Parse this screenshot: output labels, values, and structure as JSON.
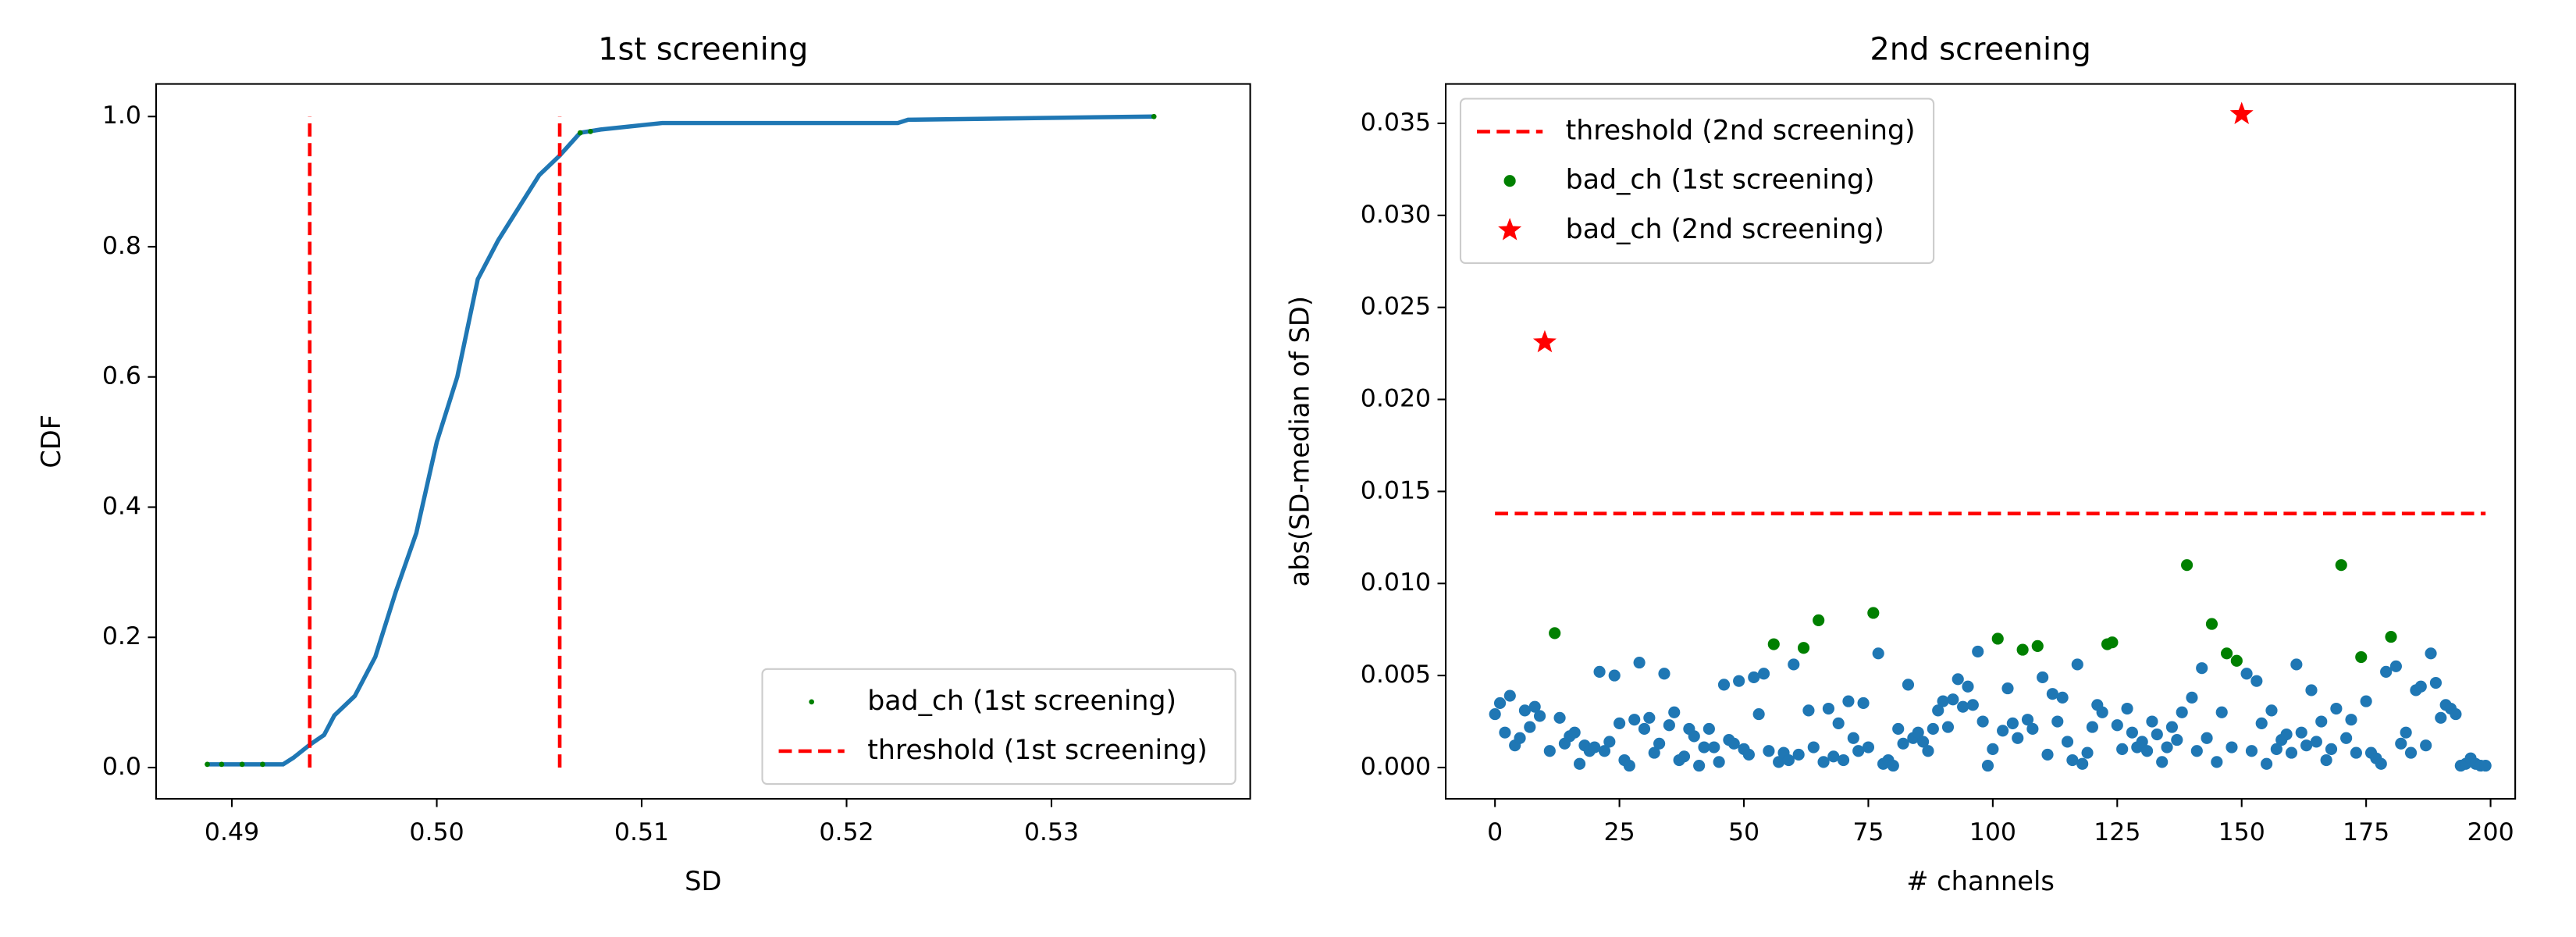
{
  "chart_data": [
    {
      "type": "line",
      "title": "1st screening",
      "xlabel": "SD",
      "ylabel": "CDF",
      "xlim": [
        0.4863,
        0.5397
      ],
      "ylim": [
        -0.048,
        1.05
      ],
      "xticks": [
        0.49,
        {
          "value": 0.5,
          "label": "0.50"
        },
        0.51,
        0.52,
        0.53
      ],
      "yticks": [
        {
          "value": 0,
          "label": "0.0"
        },
        0.2,
        0.4,
        0.6,
        0.8,
        {
          "value": 1,
          "label": "1.0"
        }
      ],
      "legend_loc": "lower right",
      "series": [
        {
          "type": "line",
          "color": "#1f77b4",
          "x": [
            0.4888,
            0.4925,
            0.493,
            0.4938,
            0.4945,
            0.495,
            0.496,
            0.497,
            0.498,
            0.499,
            0.5,
            0.501,
            0.502,
            0.503,
            0.504,
            0.505,
            0.506,
            0.507,
            0.508,
            0.511,
            0.5225,
            0.523,
            0.535
          ],
          "values": [
            0.005,
            0.005,
            0.015,
            0.035,
            0.05,
            0.08,
            0.11,
            0.17,
            0.27,
            0.36,
            0.5,
            0.6,
            0.75,
            0.81,
            0.86,
            0.91,
            0.94,
            0.975,
            0.98,
            0.99,
            0.99,
            0.995,
            1.0
          ]
        },
        {
          "type": "scatter",
          "name": "bad_ch (1st screening)",
          "color": "green",
          "marker": ".",
          "x": [
            0.4888,
            0.4895,
            0.4905,
            0.4915,
            0.507,
            0.5075,
            0.535
          ],
          "values": [
            0.005,
            0.005,
            0.005,
            0.005,
            0.975,
            0.977,
            1.0
          ]
        },
        {
          "type": "line",
          "name": "threshold (1st screening)",
          "color": "red",
          "dash": true,
          "x": [
            0.4938,
            0.4938,
            null,
            0.506,
            0.506
          ],
          "values": [
            0,
            1,
            null,
            0,
            1
          ]
        }
      ]
    },
    {
      "type": "scatter",
      "title": "2nd screening",
      "xlabel": "# channels",
      "ylabel": "abs(SD-median of SD)",
      "xlim": [
        -9.9,
        204.95
      ],
      "ylim": [
        -0.0017,
        0.03714
      ],
      "xticks": [
        0,
        25,
        50,
        75,
        100,
        125,
        150,
        175,
        200
      ],
      "yticks": [
        {
          "value": 0,
          "label": "0.000"
        },
        {
          "value": 0.005,
          "label": "0.005"
        },
        {
          "value": 0.01,
          "label": "0.010"
        },
        {
          "value": 0.015,
          "label": "0.015"
        },
        {
          "value": 0.02,
          "label": "0.020"
        },
        {
          "value": 0.025,
          "label": "0.025"
        },
        {
          "value": 0.03,
          "label": "0.030"
        },
        {
          "value": 0.035,
          "label": "0.035"
        }
      ],
      "legend_loc": "upper left",
      "series": [
        {
          "type": "scatter",
          "color": "#1f77b4",
          "marker": "o",
          "x": [
            0,
            1,
            2,
            3,
            4,
            5,
            6,
            7,
            8,
            9,
            10,
            11,
            12,
            13,
            14,
            15,
            16,
            17,
            18,
            19,
            20,
            21,
            22,
            23,
            24,
            25,
            26,
            27,
            28,
            29,
            30,
            31,
            32,
            33,
            34,
            35,
            36,
            37,
            38,
            39,
            40,
            41,
            42,
            43,
            44,
            45,
            46,
            47,
            48,
            49,
            50,
            51,
            52,
            53,
            54,
            55,
            56,
            57,
            58,
            59,
            60,
            61,
            62,
            63,
            64,
            65,
            66,
            67,
            68,
            69,
            70,
            71,
            72,
            73,
            74,
            75,
            76,
            77,
            78,
            79,
            80,
            81,
            82,
            83,
            84,
            85,
            86,
            87,
            88,
            89,
            90,
            91,
            92,
            93,
            94,
            95,
            96,
            97,
            98,
            99,
            100,
            101,
            102,
            103,
            104,
            105,
            106,
            107,
            108,
            109,
            110,
            111,
            112,
            113,
            114,
            115,
            116,
            117,
            118,
            119,
            120,
            121,
            122,
            123,
            124,
            125,
            126,
            127,
            128,
            129,
            130,
            131,
            132,
            133,
            134,
            135,
            136,
            137,
            138,
            139,
            140,
            141,
            142,
            143,
            144,
            145,
            146,
            147,
            148,
            149,
            150,
            151,
            152,
            153,
            154,
            155,
            156,
            157,
            158,
            159,
            160,
            161,
            162,
            163,
            164,
            165,
            166,
            167,
            168,
            169,
            170,
            171,
            172,
            173,
            174,
            175,
            176,
            177,
            178,
            179,
            180,
            181,
            182,
            183,
            184,
            185,
            186,
            187,
            188,
            189,
            190,
            191,
            192,
            193,
            194,
            195,
            196,
            197,
            198,
            199
          ],
          "values": [
            0.0029,
            0.0035,
            0.0019,
            0.0039,
            0.0012,
            0.0016,
            0.0031,
            0.0022,
            0.0033,
            0.0028,
            null,
            0.0009,
            null,
            0.0027,
            0.0013,
            0.0017,
            0.0019,
            0.0002,
            0.0012,
            0.0009,
            0.0011,
            0.0052,
            0.0009,
            0.0014,
            0.005,
            0.0024,
            0.0004,
            0.0001,
            0.0026,
            0.0057,
            0.0021,
            0.0027,
            0.0008,
            0.0013,
            0.0051,
            0.0023,
            0.003,
            0.0004,
            0.0006,
            0.0021,
            0.0017,
            0.0001,
            0.0011,
            0.0021,
            0.0011,
            0.0003,
            0.0045,
            0.0015,
            0.0013,
            0.0047,
            0.001,
            0.0007,
            0.0049,
            0.0029,
            0.0051,
            0.0009,
            null,
            0.0003,
            0.0008,
            0.0004,
            0.0056,
            0.0007,
            null,
            0.0031,
            0.0011,
            null,
            0.0003,
            0.0032,
            0.0006,
            0.0024,
            0.0004,
            0.0036,
            0.0016,
            0.0009,
            0.0035,
            0.0011,
            null,
            0.0062,
            0.0002,
            0.0004,
            0.0001,
            0.0021,
            0.0013,
            0.0045,
            0.0016,
            0.0019,
            0.0014,
            0.0009,
            0.0021,
            0.0031,
            0.0036,
            0.0022,
            0.0037,
            0.0048,
            0.0033,
            0.0044,
            0.0034,
            0.0063,
            0.0025,
            0.0001,
            0.001,
            null,
            0.002,
            0.0043,
            0.0024,
            0.0016,
            null,
            0.0026,
            0.0021,
            null,
            0.0049,
            0.0007,
            0.004,
            0.0025,
            0.0038,
            0.0014,
            0.0004,
            0.0056,
            0.0002,
            0.0008,
            0.0022,
            0.0034,
            0.003,
            null,
            null,
            0.0023,
            0.001,
            0.0032,
            0.0019,
            0.0011,
            0.0014,
            0.0009,
            0.0025,
            0.0018,
            0.0003,
            0.0011,
            0.0022,
            0.0015,
            0.003,
            null,
            0.0038,
            0.0009,
            0.0054,
            0.0016,
            null,
            0.0003,
            0.003,
            null,
            0.0011,
            null,
            null,
            0.0051,
            0.0009,
            0.0047,
            0.0024,
            0.0002,
            0.0031,
            0.001,
            0.0015,
            0.0018,
            0.0008,
            0.0056,
            0.0019,
            0.0012,
            0.0042,
            0.0014,
            0.0025,
            0.0004,
            0.001,
            0.0032,
            null,
            0.0016,
            0.0026,
            0.0008,
            null,
            0.0036,
            0.0008,
            0.0005,
            0.0002,
            0.0052,
            null,
            0.0055,
            0.0013,
            0.0019,
            0.0008,
            0.0042,
            0.0044,
            0.0012,
            0.0062,
            0.0046,
            0.0027,
            0.0034,
            0.0032,
            0.0029,
            0.0001,
            0.0002,
            0.0005,
            0.0002,
            0.0001,
            0.0001
          ]
        },
        {
          "type": "line",
          "name": "threshold (2nd screening)",
          "color": "red",
          "dash": true,
          "x": [
            0,
            199
          ],
          "values": [
            0.0138,
            0.0138
          ]
        },
        {
          "type": "scatter",
          "name": "bad_ch (1st screening)",
          "color": "green",
          "marker": "o",
          "x": [
            12,
            56,
            62,
            65,
            76,
            101,
            106,
            109,
            123,
            124,
            139,
            144,
            147,
            149,
            170,
            174,
            180
          ],
          "values": [
            0.0073,
            0.0067,
            0.0065,
            0.008,
            0.0084,
            0.007,
            0.0064,
            0.0066,
            0.0067,
            0.0068,
            0.011,
            0.0078,
            0.0062,
            0.0058,
            0.011,
            0.006,
            0.0071
          ]
        },
        {
          "type": "scatter",
          "name": "bad_ch (2nd screening)",
          "color": "red",
          "marker": "*",
          "x": [
            10,
            150
          ],
          "values": [
            0.0231,
            0.0355
          ]
        }
      ]
    }
  ]
}
